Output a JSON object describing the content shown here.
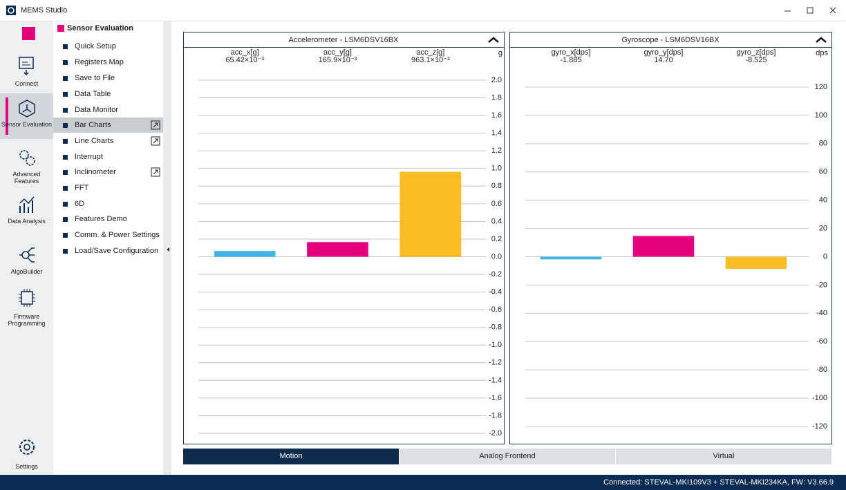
{
  "window": {
    "title": "MEMS Studio"
  },
  "sidebar": {
    "items": [
      "Connect",
      "Sensor Evaluation",
      "Advanced Features",
      "Data Analysis",
      "AlgoBuilder",
      "Firmware Programming"
    ],
    "settings": "Settings"
  },
  "menu": {
    "title": "Sensor Evaluation",
    "items": [
      "Quick Setup",
      "Registers Map",
      "Save to File",
      "Data Table",
      "Data Monitor",
      "Bar Charts",
      "Line Charts",
      "Interrupt",
      "Inclinometer",
      "FFT",
      "6D",
      "Features Demo",
      "Comm. & Power Settings",
      "Load/Save Configuration"
    ]
  },
  "chart_data": [
    {
      "type": "bar",
      "title": "Accelerometer - LSM6DSV16BX",
      "unit": "g",
      "categories": [
        "acc_x[g]",
        "acc_y[g]",
        "acc_z[g]"
      ],
      "values": [
        0.06542,
        0.1659,
        0.9631
      ],
      "value_labels": [
        "65.42×10⁻³",
        "165.9×10⁻³",
        "963.1×10⁻³"
      ],
      "colors": [
        "#3db5e6",
        "#e6007e",
        "#fbbd24"
      ],
      "ylim": [
        -2,
        2
      ],
      "yticks": [
        {
          "value": -2,
          "label": "-2.0"
        },
        -1.8,
        -1.6,
        -1.4,
        -1.2,
        {
          "value": -1,
          "label": "-1.0"
        },
        -0.8,
        -0.6,
        -0.4,
        -0.2,
        {
          "value": 0,
          "label": "0.0"
        },
        0.2,
        0.4,
        0.6,
        0.8,
        {
          "value": 1,
          "label": "1.0"
        },
        1.2,
        1.4,
        1.6,
        1.8,
        {
          "value": 2,
          "label": "2.0"
        }
      ],
      "grid": true
    },
    {
      "type": "bar",
      "title": "Gyroscope - LSM6DSV16BX",
      "unit": "dps",
      "categories": [
        "gyro_x[dps]",
        "gyro_y[dps]",
        "gyro_z[dps]"
      ],
      "values": [
        -1.885,
        14.7,
        -8.525
      ],
      "value_labels": [
        "-1.885",
        "14.70",
        "-8.525"
      ],
      "colors": [
        "#3db5e6",
        "#e6007e",
        "#fbbd24"
      ],
      "ylim": [
        -120,
        120
      ],
      "yticks": [
        -120,
        -100,
        -80,
        -60,
        -40,
        -20,
        0,
        20,
        40,
        60,
        80,
        100,
        120
      ],
      "grid": true
    }
  ],
  "tabs": [
    "Motion",
    "Analog Frontend",
    "Virtual"
  ],
  "status": "Connected:  STEVAL-MKI109V3 + STEVAL-MKI234KA, FW: V3.66.9"
}
